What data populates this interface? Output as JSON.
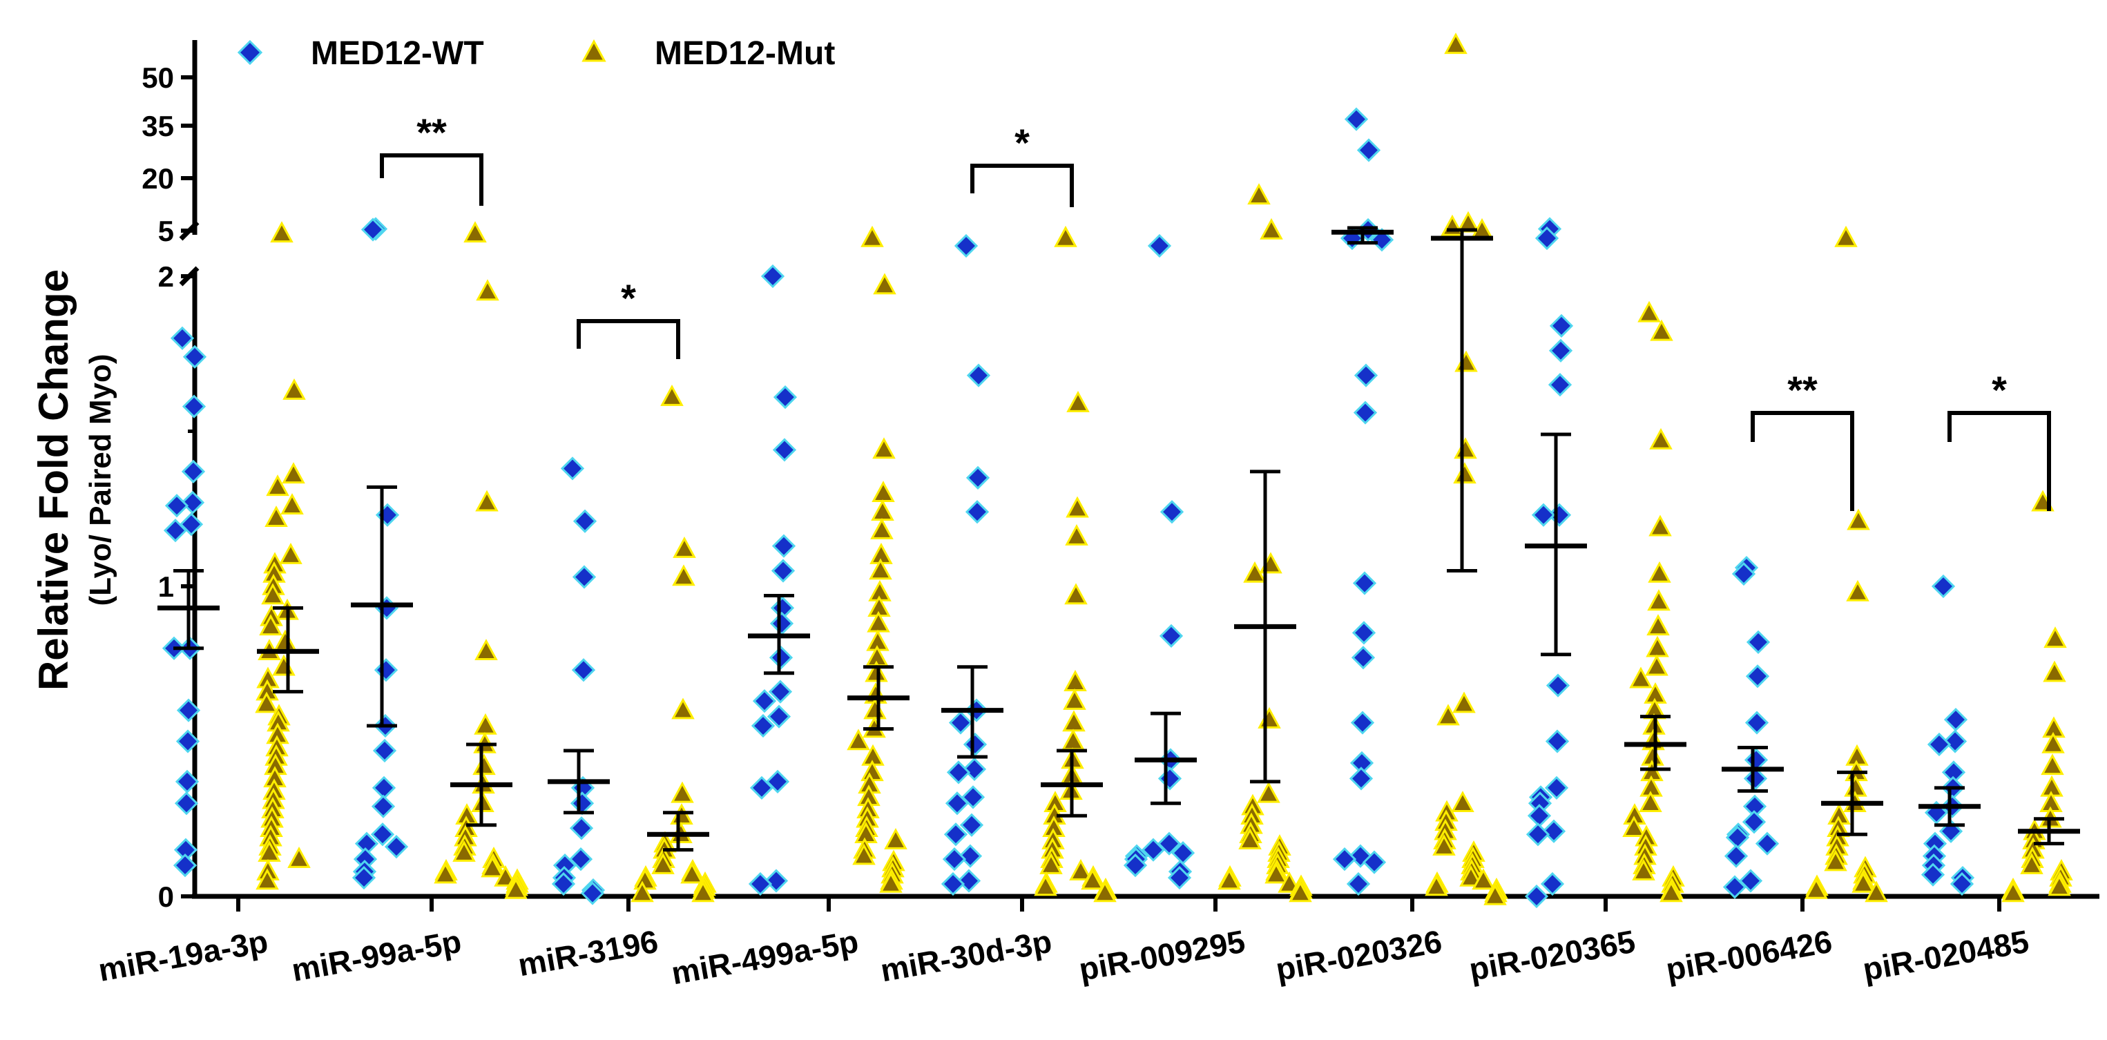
{
  "chart_data": {
    "type": "scatter",
    "subtype": "dot-plot with mean and SEM, broken y-axis",
    "title": "",
    "ylabel": "Relative Fold Change",
    "ylabel_sub": "(Lyo/ Paired Myo)",
    "xlabel": "",
    "y_axis": {
      "lower_segment": {
        "range": [
          0,
          2
        ],
        "ticks": [
          "0",
          "1",
          "2"
        ]
      },
      "upper_segment": {
        "range": [
          5,
          60
        ],
        "ticks": [
          "5",
          "20",
          "35",
          "50"
        ]
      },
      "break_between": [
        2,
        5
      ]
    },
    "legend": {
      "position": "top-left",
      "entries": [
        {
          "name": "MED12-WT",
          "marker": "diamond",
          "color": "#1530c9",
          "edge": "#4fd6ef"
        },
        {
          "name": "MED12-Mut",
          "marker": "triangle",
          "color": "#8a6a00",
          "edge": "#ffee00"
        }
      ]
    },
    "categories": [
      "miR-19a-3p",
      "miR-99a-5p",
      "miR-3196",
      "miR-499a-5p",
      "miR-30d-3p",
      "piR-009295",
      "piR-020326",
      "piR-020365",
      "piR-006426",
      "piR-020485"
    ],
    "series": [
      {
        "name": "MED12-WT",
        "means": [
          0.93,
          0.94,
          0.37,
          0.84,
          0.6,
          0.44,
          4.9,
          1.13,
          0.41,
          0.29
        ],
        "sem_low": [
          0.8,
          0.55,
          0.27,
          0.72,
          0.45,
          0.3,
          4.2,
          0.78,
          0.34,
          0.23
        ],
        "sem_high": [
          1.05,
          1.32,
          0.47,
          0.97,
          0.74,
          0.59,
          5.8,
          1.49,
          0.48,
          0.35
        ],
        "points": [
          [
            1.8,
            1.74,
            1.58,
            1.37,
            1.27,
            1.26,
            1.2,
            1.18,
            0.8,
            0.8,
            0.6,
            0.5,
            0.37,
            0.3,
            0.15,
            0.1
          ],
          [
            5.5,
            5.3,
            1.23,
            0.93,
            0.73,
            0.55,
            0.47,
            0.35,
            0.29,
            0.2,
            0.17,
            0.16,
            0.12,
            0.08,
            0.06
          ],
          [
            1.38,
            1.21,
            1.03,
            0.73,
            0.35,
            0.3,
            0.22,
            0.12,
            0.1,
            0.06,
            0.04,
            0.02,
            0.01
          ],
          [
            2.0,
            1.61,
            1.44,
            1.13,
            1.05,
            0.93,
            0.88,
            0.77,
            0.66,
            0.63,
            0.58,
            0.55,
            0.37,
            0.35,
            0.05,
            0.04
          ],
          [
            4.0,
            1.68,
            1.35,
            1.24,
            0.6,
            0.56,
            0.49,
            0.41,
            0.4,
            0.32,
            0.3,
            0.23,
            0.2,
            0.13,
            0.12,
            0.05,
            0.04
          ],
          [
            4.0,
            1.24,
            0.84,
            0.44,
            0.38,
            0.17,
            0.15,
            0.14,
            0.13,
            0.12,
            0.1,
            0.08,
            0.06
          ],
          [
            37.0,
            28.0,
            5.2,
            4.5,
            4.4,
            1.68,
            1.56,
            1.01,
            0.85,
            0.77,
            0.56,
            0.43,
            0.38,
            0.13,
            0.12,
            0.11,
            0.04
          ],
          [
            5.5,
            4.5,
            1.84,
            1.76,
            1.65,
            1.23,
            1.23,
            0.68,
            0.5,
            0.35,
            0.32,
            0.3,
            0.26,
            0.21,
            0.2,
            0.04,
            0.0
          ],
          [
            1.06,
            1.04,
            0.82,
            0.71,
            0.56,
            0.44,
            0.38,
            0.29,
            0.24,
            0.2,
            0.19,
            0.17,
            0.13,
            0.05,
            0.03
          ],
          [
            1.0,
            0.57,
            0.5,
            0.49,
            0.4,
            0.35,
            0.29,
            0.27,
            0.21,
            0.17,
            0.13,
            0.1,
            0.07,
            0.06,
            0.04
          ]
        ]
      },
      {
        "name": "MED12-Mut",
        "means": [
          0.79,
          0.36,
          0.2,
          0.64,
          0.36,
          0.87,
          4.5,
          0.49,
          0.3,
          0.21
        ],
        "sem_low": [
          0.66,
          0.23,
          0.15,
          0.54,
          0.26,
          0.37,
          1.05,
          0.41,
          0.2,
          0.17
        ],
        "sem_high": [
          0.93,
          0.49,
          0.27,
          0.74,
          0.47,
          1.37,
          5.2,
          0.58,
          0.4,
          0.25
        ],
        "points": [
          [
            4.8,
            1.63,
            1.36,
            1.32,
            1.26,
            1.22,
            1.1,
            1.07,
            1.04,
            1.0,
            0.97,
            0.92,
            0.9,
            0.87,
            0.82,
            0.79,
            0.74,
            0.7,
            0.66,
            0.62,
            0.58,
            0.56,
            0.52,
            0.48,
            0.45,
            0.42,
            0.38,
            0.34,
            0.31,
            0.28,
            0.25,
            0.22,
            0.19,
            0.16,
            0.14,
            0.12,
            0.08,
            0.05
          ],
          [
            4.8,
            1.95,
            1.27,
            0.79,
            0.55,
            0.49,
            0.42,
            0.36,
            0.3,
            0.26,
            0.22,
            0.19,
            0.16,
            0.14,
            0.12,
            0.1,
            0.09,
            0.08,
            0.07,
            0.06,
            0.05,
            0.04,
            0.03,
            0.02
          ],
          [
            1.61,
            1.12,
            1.03,
            0.6,
            0.33,
            0.26,
            0.2,
            0.17,
            0.15,
            0.12,
            0.1,
            0.08,
            0.07,
            0.06,
            0.05,
            0.04,
            0.03,
            0.02,
            0.01,
            0.01
          ],
          [
            4.5,
            1.97,
            1.44,
            1.3,
            1.24,
            1.18,
            1.1,
            1.05,
            0.98,
            0.93,
            0.88,
            0.82,
            0.77,
            0.72,
            0.65,
            0.6,
            0.54,
            0.5,
            0.45,
            0.4,
            0.36,
            0.32,
            0.28,
            0.25,
            0.22,
            0.2,
            0.18,
            0.15,
            0.13,
            0.11,
            0.09,
            0.07,
            0.05,
            0.04
          ],
          [
            4.5,
            1.59,
            1.25,
            1.16,
            0.97,
            0.69,
            0.63,
            0.56,
            0.5,
            0.44,
            0.39,
            0.34,
            0.3,
            0.26,
            0.22,
            0.18,
            0.15,
            0.12,
            0.1,
            0.08,
            0.06,
            0.05,
            0.04,
            0.03,
            0.02,
            0.01
          ],
          [
            15.0,
            5.0,
            1.07,
            1.04,
            0.57,
            0.33,
            0.29,
            0.26,
            0.23,
            0.2,
            0.18,
            0.16,
            0.14,
            0.12,
            0.1,
            0.08,
            0.07,
            0.06,
            0.05,
            0.04,
            0.03,
            0.02,
            0.01
          ],
          [
            60.0,
            7.0,
            6.0,
            5.0,
            1.72,
            1.44,
            1.36,
            0.62,
            0.58,
            0.3,
            0.27,
            0.24,
            0.21,
            0.18,
            0.16,
            0.14,
            0.12,
            0.1,
            0.08,
            0.06,
            0.05,
            0.04,
            0.03,
            0.02,
            0.01,
            0.0
          ],
          [
            1.88,
            1.82,
            1.47,
            1.19,
            1.04,
            0.95,
            0.87,
            0.8,
            0.74,
            0.7,
            0.65,
            0.6,
            0.55,
            0.5,
            0.45,
            0.4,
            0.35,
            0.3,
            0.26,
            0.22,
            0.19,
            0.16,
            0.13,
            0.1,
            0.08,
            0.06,
            0.04,
            0.02,
            0.01
          ],
          [
            4.5,
            1.21,
            0.98,
            0.45,
            0.4,
            0.35,
            0.3,
            0.26,
            0.22,
            0.19,
            0.16,
            0.13,
            0.11,
            0.09,
            0.07,
            0.05,
            0.04,
            0.03,
            0.02,
            0.01
          ],
          [
            1.27,
            0.83,
            0.72,
            0.54,
            0.49,
            0.42,
            0.35,
            0.3,
            0.25,
            0.21,
            0.18,
            0.15,
            0.12,
            0.1,
            0.08,
            0.06,
            0.04,
            0.03,
            0.02,
            0.01
          ]
        ]
      }
    ],
    "significance": [
      {
        "category": "miR-99a-5p",
        "label": "**"
      },
      {
        "category": "miR-3196",
        "label": "*"
      },
      {
        "category": "miR-30d-3p",
        "label": "*"
      },
      {
        "category": "piR-006426",
        "label": "**"
      },
      {
        "category": "piR-020485",
        "label": "*"
      }
    ]
  }
}
